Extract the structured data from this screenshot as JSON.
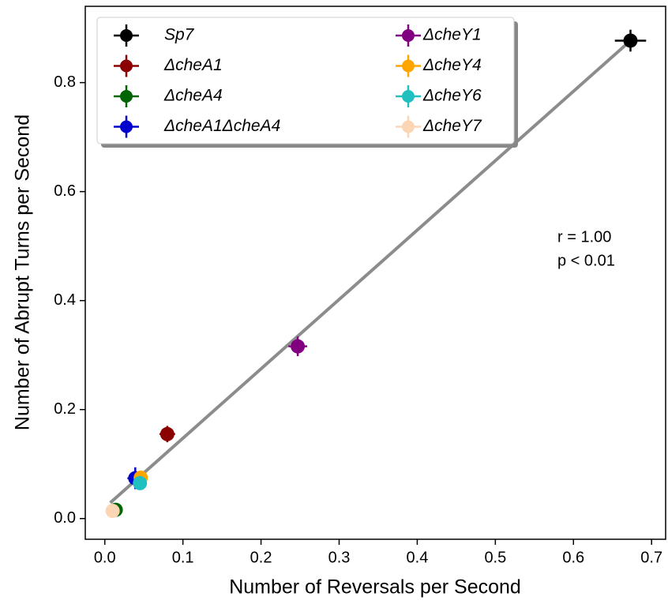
{
  "chart_data": {
    "type": "scatter",
    "x_label": "Number of Reversals per Second",
    "y_label": "Number of Abrupt Turns per Second",
    "xlim": [
      -0.025,
      0.718
    ],
    "ylim": [
      -0.038,
      0.94
    ],
    "xticks": [
      {
        "value": 0,
        "label": "0.0"
      },
      0.1,
      0.2,
      0.3,
      0.4,
      0.5,
      0.6,
      0.7
    ],
    "yticks": [
      {
        "value": 0,
        "label": "0.0"
      },
      0.2,
      0.4,
      0.6,
      0.8
    ],
    "grid": false,
    "legend": "upper left",
    "series": [
      {
        "name": "Sp7",
        "color": "#000000",
        "x": [
          0.673
        ],
        "values": [
          0.877
        ],
        "xerr": [
          0.02
        ],
        "yerr": [
          0.02
        ]
      },
      {
        "name": "ΔcheA1",
        "color": "#8b0000",
        "x": [
          0.08
        ],
        "values": [
          0.155
        ],
        "xerr": [
          0.01
        ],
        "yerr": [
          0.015
        ]
      },
      {
        "name": "ΔcheA4",
        "color": "#006400",
        "x": [
          0.014
        ],
        "values": [
          0.016
        ],
        "xerr": [
          0.005
        ],
        "yerr": [
          0.008
        ]
      },
      {
        "name": "ΔcheA1ΔcheA4",
        "color": "#0000cd",
        "x": [
          0.039
        ],
        "values": [
          0.074
        ],
        "xerr": [
          0.01
        ],
        "yerr": [
          0.02
        ]
      },
      {
        "name": "ΔcheY1",
        "color": "#800080",
        "x": [
          0.247
        ],
        "values": [
          0.316
        ],
        "xerr": [
          0.012
        ],
        "yerr": [
          0.018
        ]
      },
      {
        "name": "ΔcheY4",
        "color": "#ffa500",
        "x": [
          0.046
        ],
        "values": [
          0.075
        ],
        "xerr": [
          0.008
        ],
        "yerr": [
          0.01
        ]
      },
      {
        "name": "ΔcheY6",
        "color": "#20c0c0",
        "x": [
          0.045
        ],
        "values": [
          0.065
        ],
        "xerr": [
          0.005
        ],
        "yerr": [
          0.008
        ]
      },
      {
        "name": "ΔcheY7",
        "color": "#fcd5b5",
        "x": [
          0.01
        ],
        "values": [
          0.014
        ],
        "xerr": [
          0.005
        ],
        "yerr": [
          0.008
        ]
      }
    ],
    "fit": {
      "color": "#808080",
      "x": [
        0.007,
        0.673
      ],
      "values": [
        0.029,
        0.877
      ]
    },
    "annotations": [
      "r = 1.00",
      "p < 0.01"
    ]
  }
}
